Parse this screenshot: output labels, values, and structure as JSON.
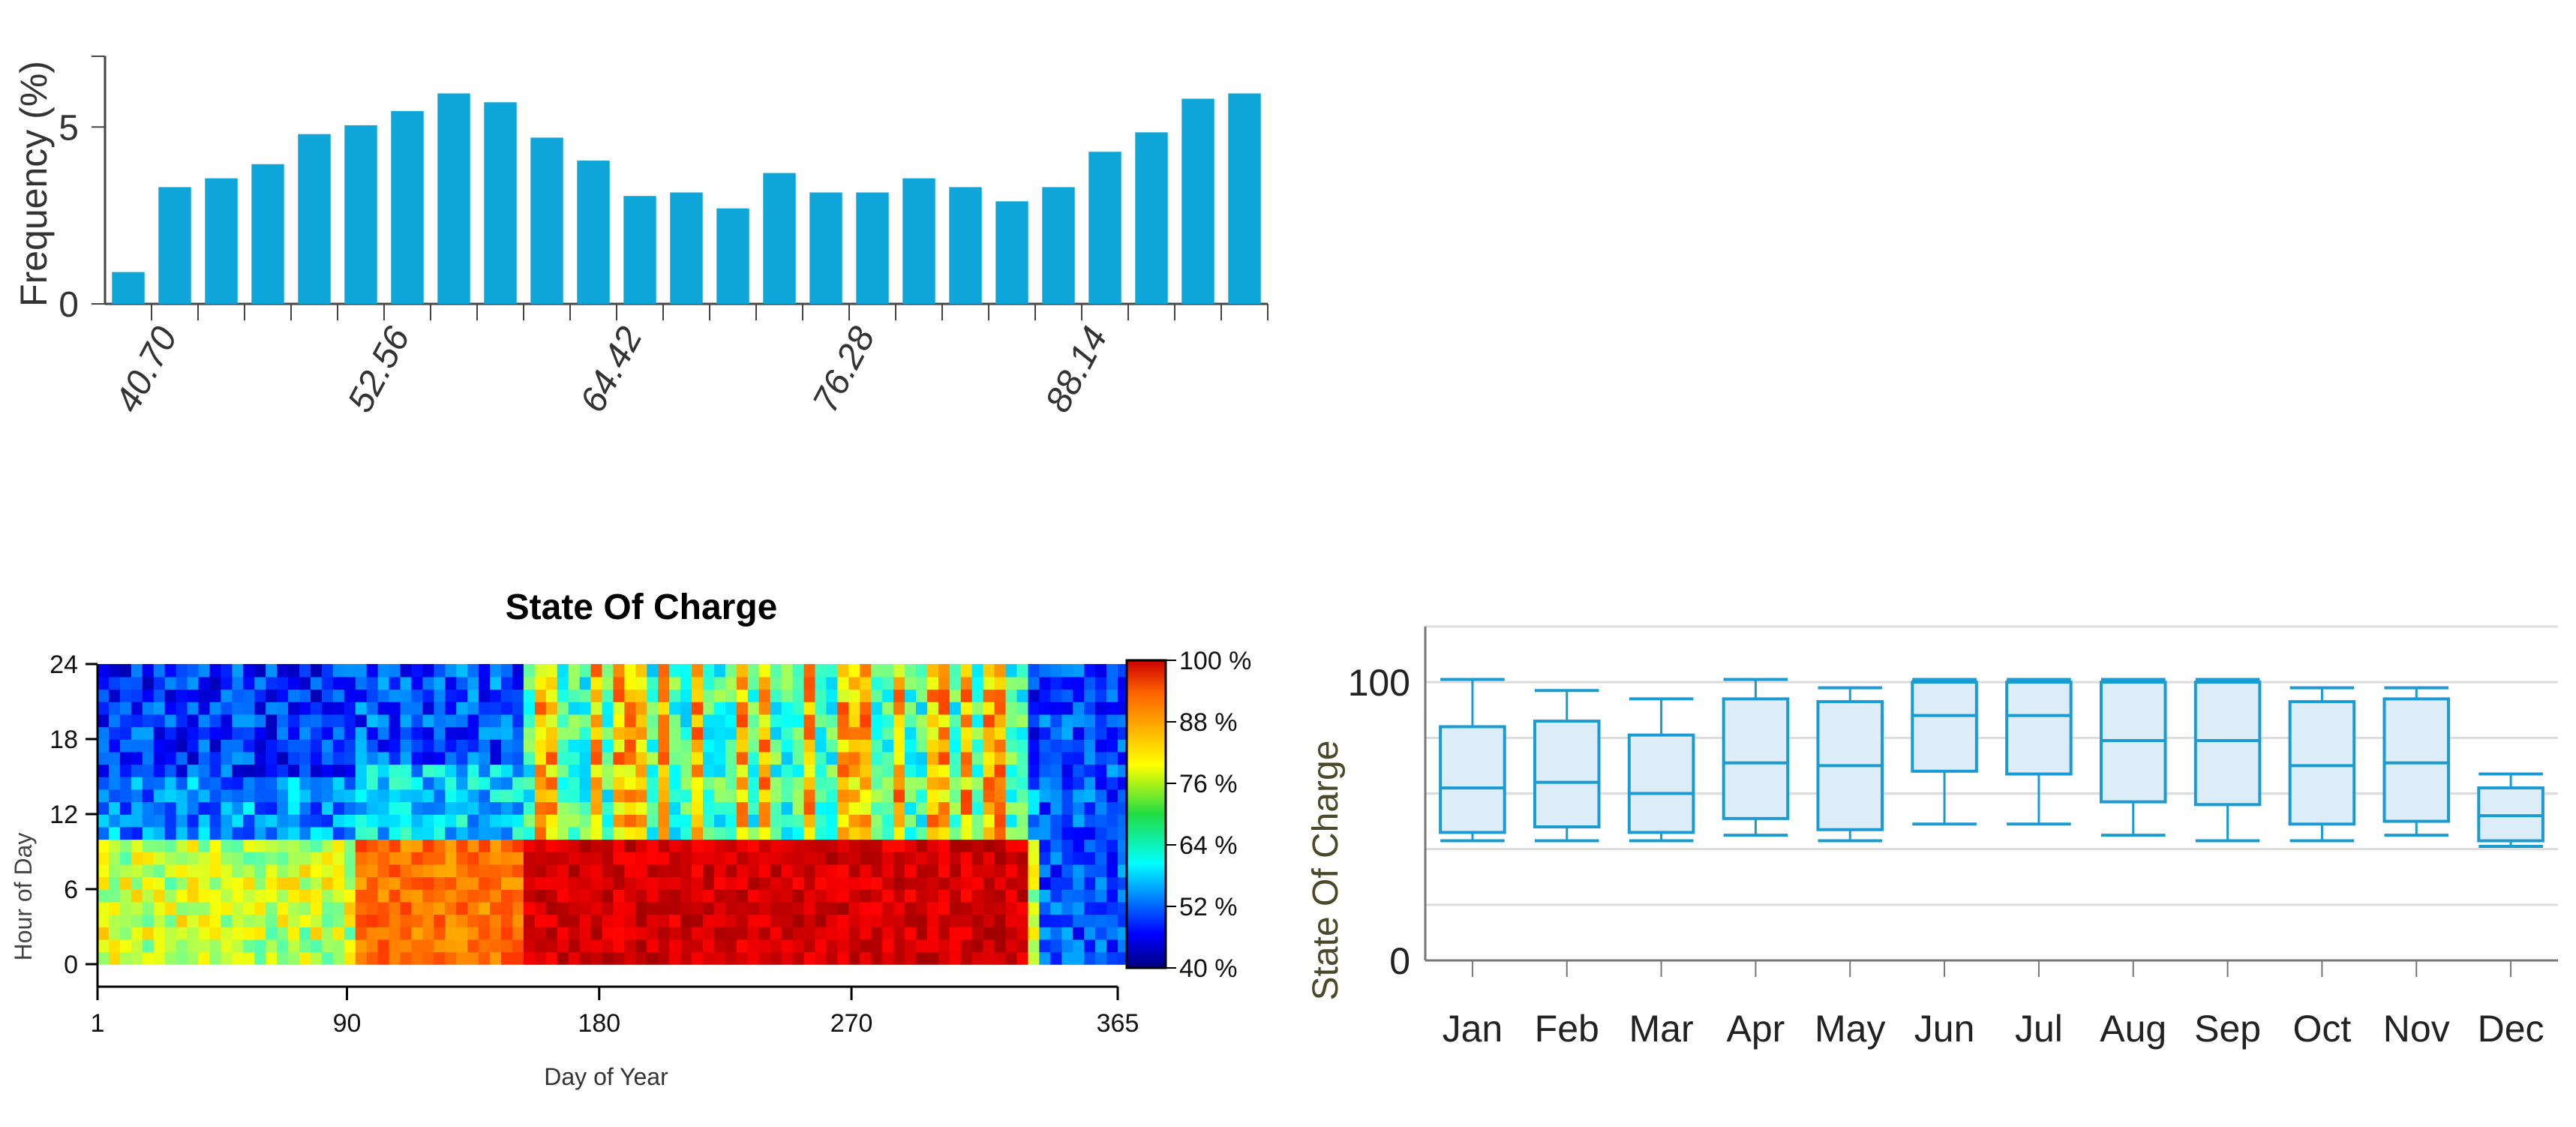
{
  "chart_data": [
    {
      "type": "bar",
      "title": "",
      "ylabel": "Frequency (%)",
      "xlabel": "",
      "ylim": [
        0,
        7
      ],
      "yticks": [
        0,
        5
      ],
      "xtick_labels": [
        "40.70",
        "52.56",
        "64.42",
        "76.28",
        "88.14"
      ],
      "xtick_bins": [
        0,
        5,
        10,
        15,
        20
      ],
      "values": [
        0.9,
        3.3,
        3.55,
        3.95,
        4.8,
        5.05,
        5.45,
        5.95,
        5.7,
        4.7,
        4.05,
        3.05,
        3.15,
        2.7,
        3.7,
        3.15,
        3.15,
        3.55,
        3.3,
        2.9,
        3.3,
        4.3,
        4.85,
        5.8,
        5.95
      ],
      "color": "#0ea5d8"
    },
    {
      "type": "heatmap",
      "title": "State Of Charge",
      "xlabel": "Day of Year",
      "ylabel": "Hour of Day",
      "xlim": [
        1,
        365
      ],
      "ylim": [
        0,
        24
      ],
      "xticks": [
        "1",
        "90",
        "180",
        "270",
        "365"
      ],
      "xtick_values": [
        1,
        90,
        180,
        270,
        365
      ],
      "yticks": [
        "0",
        "6",
        "12",
        "18",
        "24"
      ],
      "ytick_values": [
        0,
        6,
        12,
        18,
        24
      ],
      "colorbar_labels": [
        "100 %",
        "88 %",
        "76 %",
        "64 %",
        "52 %",
        "40 %"
      ],
      "colorbar_values": [
        100,
        88,
        76,
        64,
        52,
        40
      ],
      "value_range": [
        40,
        100
      ]
    },
    {
      "type": "box",
      "title": "",
      "xlabel": "",
      "ylabel": "State Of Charge",
      "ylim": [
        0,
        120
      ],
      "yticks": [
        "0",
        "100"
      ],
      "ytick_values": [
        0,
        100
      ],
      "categories": [
        "Jan",
        "Feb",
        "Mar",
        "Apr",
        "May",
        "Jun",
        "Jul",
        "Aug",
        "Sep",
        "Oct",
        "Nov",
        "Dec"
      ],
      "boxes": [
        {
          "min": 43,
          "q1": 46,
          "median": 62,
          "q3": 84,
          "max": 101
        },
        {
          "min": 43,
          "q1": 48,
          "median": 64,
          "q3": 86,
          "max": 97
        },
        {
          "min": 43,
          "q1": 46,
          "median": 60,
          "q3": 81,
          "max": 94
        },
        {
          "min": 45,
          "q1": 51,
          "median": 71,
          "q3": 94,
          "max": 101
        },
        {
          "min": 43,
          "q1": 47,
          "median": 70,
          "q3": 93,
          "max": 98
        },
        {
          "min": 49,
          "q1": 68,
          "median": 88,
          "q3": 100,
          "max": 101
        },
        {
          "min": 49,
          "q1": 67,
          "median": 88,
          "q3": 100,
          "max": 101
        },
        {
          "min": 45,
          "q1": 57,
          "median": 79,
          "q3": 100,
          "max": 101
        },
        {
          "min": 43,
          "q1": 56,
          "median": 79,
          "q3": 100,
          "max": 101
        },
        {
          "min": 43,
          "q1": 49,
          "median": 70,
          "q3": 93,
          "max": 98
        },
        {
          "min": 45,
          "q1": 50,
          "median": 71,
          "q3": 94,
          "max": 98
        },
        {
          "min": 41,
          "q1": 43,
          "median": 52,
          "q3": 62,
          "max": 67
        }
      ],
      "color": "#1a9bd1",
      "fill": "#dcedf7"
    }
  ]
}
